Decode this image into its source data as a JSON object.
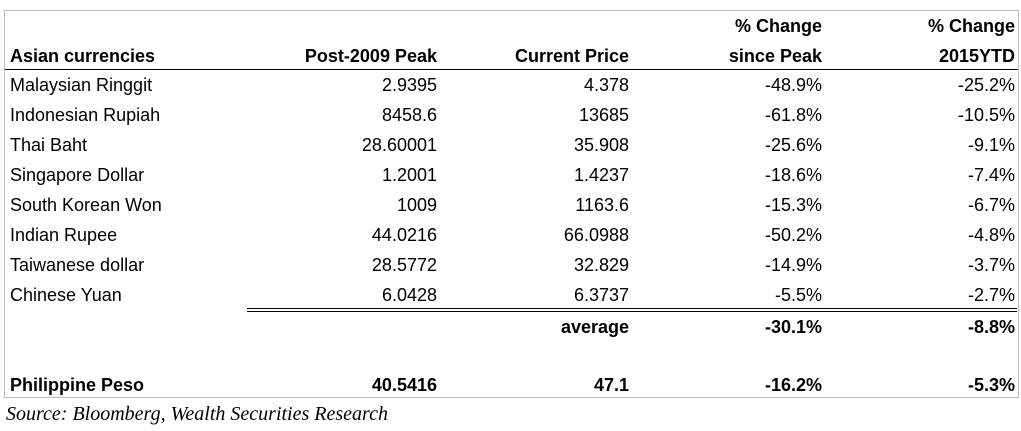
{
  "header": {
    "col1": "Asian currencies",
    "col2": "Post-2009 Peak",
    "col3": "Current Price",
    "col4_line1": "% Change",
    "col4_line2": "since Peak",
    "col5_line1": "% Change",
    "col5_line2": "2015YTD"
  },
  "rows": [
    {
      "name": "Malaysian Ringgit",
      "peak": "2.9395",
      "current": "4.378",
      "since_peak": "-48.9%",
      "ytd": "-25.2%"
    },
    {
      "name": "Indonesian Rupiah",
      "peak": "8458.6",
      "current": "13685",
      "since_peak": "-61.8%",
      "ytd": "-10.5%"
    },
    {
      "name": "Thai Baht",
      "peak": "28.60001",
      "current": "35.908",
      "since_peak": "-25.6%",
      "ytd": "-9.1%"
    },
    {
      "name": "Singapore Dollar",
      "peak": "1.2001",
      "current": "1.4237",
      "since_peak": "-18.6%",
      "ytd": "-7.4%"
    },
    {
      "name": "South Korean Won",
      "peak": "1009",
      "current": "1163.6",
      "since_peak": "-15.3%",
      "ytd": "-6.7%"
    },
    {
      "name": "Indian Rupee",
      "peak": "44.0216",
      "current": "66.0988",
      "since_peak": "-50.2%",
      "ytd": "-4.8%"
    },
    {
      "name": "Taiwanese dollar",
      "peak": "28.5772",
      "current": "32.829",
      "since_peak": "-14.9%",
      "ytd": "-3.7%"
    },
    {
      "name": "Chinese Yuan",
      "peak": "6.0428",
      "current": "6.3737",
      "since_peak": "-5.5%",
      "ytd": "-2.7%"
    }
  ],
  "average": {
    "label": "average",
    "since_peak": "-30.1%",
    "ytd": "-8.8%"
  },
  "philippine": {
    "name": "Philippine Peso",
    "peak": "40.5416",
    "current": "47.1",
    "since_peak": "-16.2%",
    "ytd": "-5.3%"
  },
  "source": "Source: Bloomberg, Wealth Securities Research"
}
